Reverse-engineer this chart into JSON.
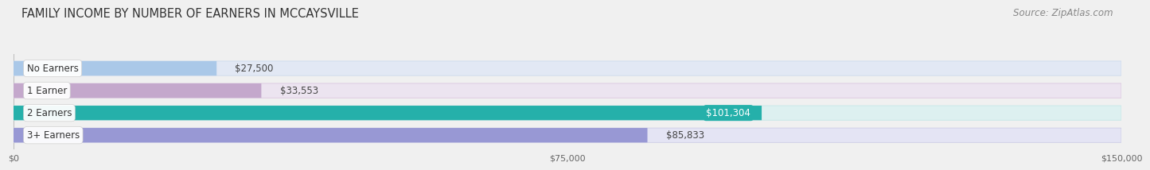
{
  "title": "FAMILY INCOME BY NUMBER OF EARNERS IN MCCAYSVILLE",
  "source": "Source: ZipAtlas.com",
  "categories": [
    "No Earners",
    "1 Earner",
    "2 Earners",
    "3+ Earners"
  ],
  "values": [
    27500,
    33553,
    101304,
    85833
  ],
  "labels": [
    "$27,500",
    "$33,553",
    "$101,304",
    "$85,833"
  ],
  "bar_colors": [
    "#aac8e8",
    "#c4a8cc",
    "#25b0aa",
    "#9898d4"
  ],
  "bar_bg_colors": [
    "#e2e8f4",
    "#ece4f0",
    "#ddf0f0",
    "#e4e4f4"
  ],
  "bar_border_colors": [
    "#c8d8ec",
    "#d8c0dc",
    "#c0e4e4",
    "#c8c8e4"
  ],
  "xlim": [
    0,
    150000
  ],
  "xtick_values": [
    0,
    75000,
    150000
  ],
  "xtick_labels": [
    "$0",
    "$75,000",
    "$150,000"
  ],
  "label_color": [
    "#444444",
    "#444444",
    "#ffffff",
    "#444444"
  ],
  "label_inside": [
    false,
    false,
    true,
    false
  ],
  "bg_color": "#f0f0f0",
  "title_fontsize": 10.5,
  "source_fontsize": 8.5,
  "bar_label_fontsize": 8.5,
  "category_fontsize": 8.5,
  "bar_height": 0.65,
  "bar_gap": 0.15
}
